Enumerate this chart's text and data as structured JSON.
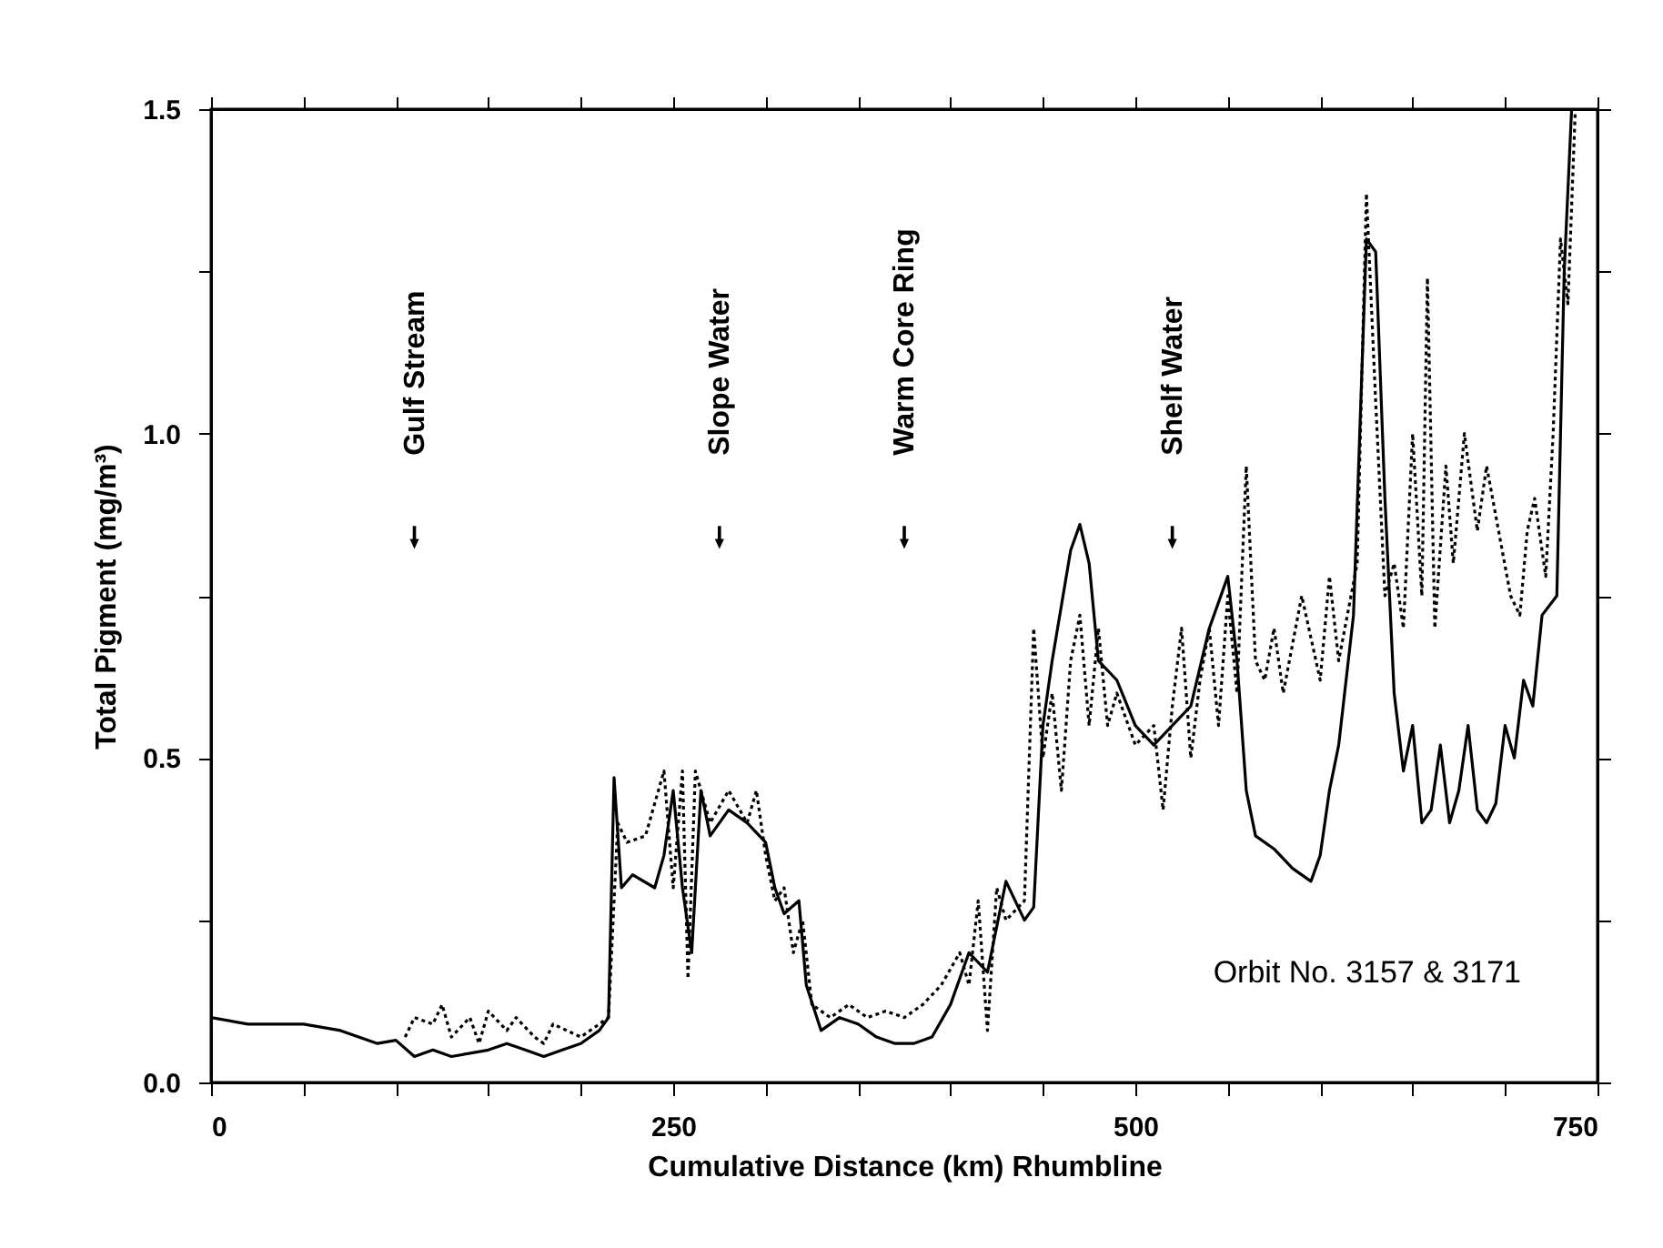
{
  "chart_data": {
    "type": "line",
    "xlabel": "Cumulative Distance (km) Rhumbline",
    "ylabel": "Total Pigment (mg/m³)",
    "xlim": [
      0,
      750
    ],
    "ylim": [
      0,
      1.5
    ],
    "xticks": [
      0,
      {
        "value": 50,
        "label": null
      },
      {
        "value": 100,
        "label": null
      },
      {
        "value": 150,
        "label": null
      },
      {
        "value": 200,
        "label": null
      },
      250,
      {
        "value": 300,
        "label": null
      },
      {
        "value": 350,
        "label": null
      },
      {
        "value": 400,
        "label": null
      },
      {
        "value": 450,
        "label": null
      },
      500,
      {
        "value": 550,
        "label": null
      },
      {
        "value": 600,
        "label": null
      },
      {
        "value": 650,
        "label": null
      },
      {
        "value": 700,
        "label": null
      },
      750
    ],
    "yticks": [
      {
        "value": 0,
        "label": "0.0"
      },
      {
        "value": 0.25,
        "label": null
      },
      {
        "value": 0.5,
        "label": "0.5"
      },
      {
        "value": 0.75,
        "label": null
      },
      {
        "value": 1.0,
        "label": "1.0"
      },
      {
        "value": 1.25,
        "label": null
      },
      {
        "value": 1.5,
        "label": "1.5"
      }
    ],
    "grid": false,
    "series": [
      {
        "color": "#000000",
        "line_style": "solid",
        "x": [
          0,
          20,
          50,
          70,
          90,
          100,
          110,
          120,
          130,
          150,
          160,
          170,
          180,
          190,
          200,
          210,
          215,
          218,
          222,
          228,
          240,
          245,
          250,
          255,
          260,
          265,
          270,
          280,
          290,
          300,
          305,
          310,
          318,
          322,
          330,
          340,
          350,
          360,
          370,
          380,
          390,
          400,
          410,
          420,
          430,
          440,
          445,
          450,
          455,
          465,
          470,
          475,
          480,
          490,
          500,
          510,
          520,
          530,
          540,
          550,
          555,
          560,
          565,
          575,
          585,
          595,
          600,
          605,
          610,
          618,
          625,
          630,
          635,
          640,
          645,
          650,
          655,
          660,
          665,
          670,
          675,
          680,
          685,
          690,
          695,
          700,
          705,
          710,
          715,
          720,
          728,
          732,
          736
        ],
        "values": [
          0.1,
          0.09,
          0.09,
          0.08,
          0.06,
          0.065,
          0.04,
          0.05,
          0.04,
          0.05,
          0.06,
          0.05,
          0.04,
          0.05,
          0.06,
          0.08,
          0.1,
          0.47,
          0.3,
          0.32,
          0.3,
          0.35,
          0.45,
          0.3,
          0.2,
          0.45,
          0.38,
          0.42,
          0.4,
          0.37,
          0.3,
          0.26,
          0.28,
          0.15,
          0.08,
          0.1,
          0.09,
          0.07,
          0.06,
          0.06,
          0.07,
          0.12,
          0.2,
          0.17,
          0.31,
          0.25,
          0.27,
          0.55,
          0.65,
          0.82,
          0.86,
          0.8,
          0.65,
          0.62,
          0.55,
          0.52,
          0.55,
          0.58,
          0.7,
          0.78,
          0.65,
          0.45,
          0.38,
          0.36,
          0.33,
          0.31,
          0.35,
          0.45,
          0.52,
          0.72,
          1.3,
          1.28,
          0.9,
          0.6,
          0.48,
          0.55,
          0.4,
          0.42,
          0.52,
          0.4,
          0.45,
          0.55,
          0.42,
          0.4,
          0.43,
          0.55,
          0.5,
          0.62,
          0.58,
          0.72,
          0.75,
          1.25,
          1.5
        ]
      },
      {
        "color": "#000000",
        "line_style": "dotted",
        "x": [
          105,
          110,
          120,
          125,
          130,
          140,
          145,
          150,
          160,
          165,
          175,
          180,
          185,
          200,
          215,
          220,
          225,
          235,
          245,
          250,
          255,
          258,
          262,
          270,
          280,
          290,
          295,
          300,
          305,
          310,
          315,
          320,
          325,
          335,
          345,
          355,
          365,
          375,
          385,
          395,
          405,
          410,
          415,
          420,
          425,
          430,
          440,
          445,
          450,
          455,
          460,
          465,
          470,
          475,
          480,
          485,
          490,
          500,
          510,
          515,
          520,
          525,
          530,
          535,
          540,
          545,
          550,
          555,
          560,
          565,
          570,
          575,
          580,
          590,
          600,
          605,
          610,
          620,
          625,
          630,
          635,
          640,
          645,
          650,
          655,
          658,
          662,
          668,
          672,
          678,
          685,
          690,
          703,
          708,
          712,
          716,
          722,
          726,
          730,
          734,
          738
        ],
        "values": [
          0.07,
          0.1,
          0.09,
          0.12,
          0.07,
          0.1,
          0.06,
          0.11,
          0.08,
          0.1,
          0.07,
          0.06,
          0.09,
          0.07,
          0.1,
          0.4,
          0.37,
          0.38,
          0.48,
          0.3,
          0.48,
          0.16,
          0.48,
          0.4,
          0.45,
          0.4,
          0.45,
          0.35,
          0.28,
          0.3,
          0.2,
          0.25,
          0.12,
          0.1,
          0.12,
          0.1,
          0.11,
          0.1,
          0.12,
          0.15,
          0.2,
          0.15,
          0.28,
          0.08,
          0.3,
          0.25,
          0.28,
          0.7,
          0.5,
          0.6,
          0.45,
          0.65,
          0.72,
          0.55,
          0.7,
          0.55,
          0.6,
          0.52,
          0.55,
          0.42,
          0.58,
          0.7,
          0.5,
          0.62,
          0.7,
          0.55,
          0.75,
          0.6,
          0.95,
          0.65,
          0.62,
          0.7,
          0.6,
          0.75,
          0.62,
          0.78,
          0.65,
          0.8,
          1.37,
          1.05,
          0.75,
          0.8,
          0.7,
          1.0,
          0.75,
          1.24,
          0.7,
          0.95,
          0.8,
          1.0,
          0.85,
          0.95,
          0.75,
          0.72,
          0.85,
          0.9,
          0.78,
          1.0,
          1.3,
          1.2,
          1.5
        ]
      }
    ],
    "annotations": [
      {
        "text": "Gulf Stream",
        "x": 110,
        "y": 0.84
      },
      {
        "text": "Slope Water",
        "x": 275,
        "y": 0.84
      },
      {
        "text": "Warm Core Ring",
        "x": 375,
        "y": 0.84
      },
      {
        "text": "Shelf Water",
        "x": 520,
        "y": 0.84
      },
      "Orbit No. 3157 & 3171"
    ]
  }
}
